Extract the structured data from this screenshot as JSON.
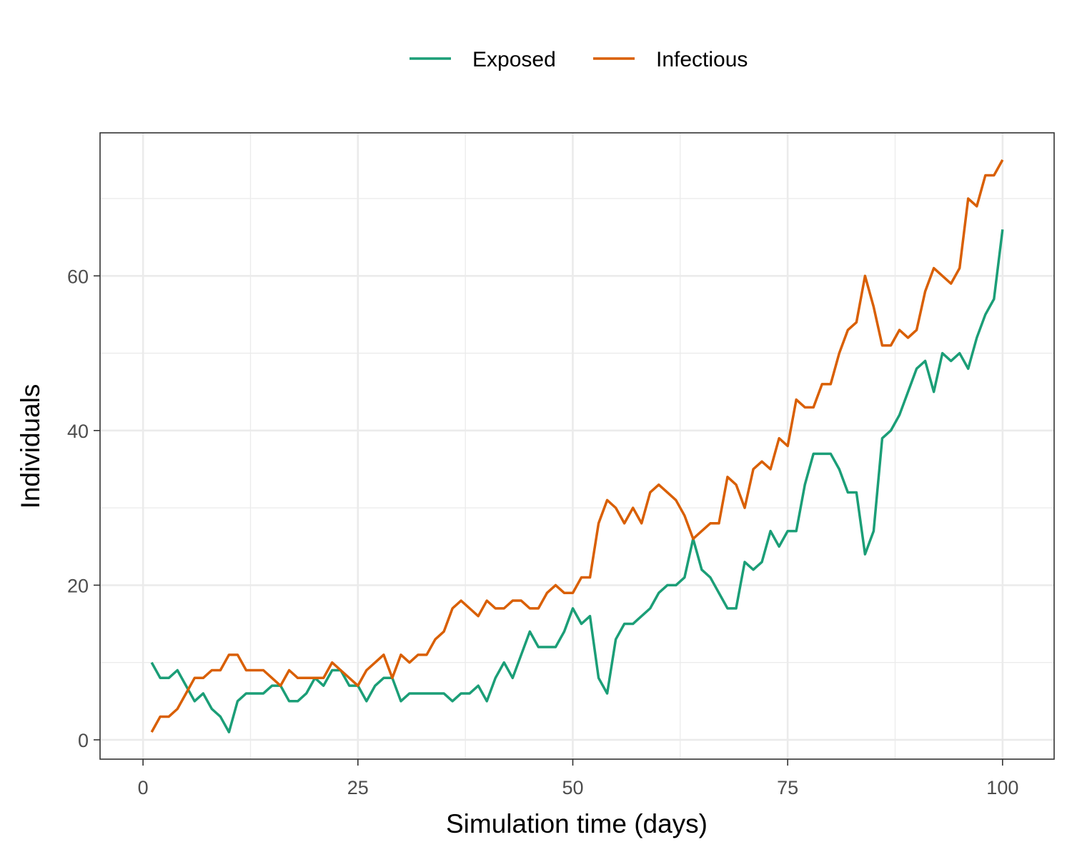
{
  "chart_data": {
    "type": "line",
    "xlabel": "Simulation time (days)",
    "ylabel": "Individuals",
    "xlim": [
      -5,
      106
    ],
    "ylim": [
      -2.5,
      78.5
    ],
    "x_ticks": [
      0,
      25,
      50,
      75,
      100
    ],
    "x_tick_labels": [
      "0",
      "25",
      "50",
      "75",
      "100"
    ],
    "y_ticks": [
      0,
      20,
      40,
      60
    ],
    "y_tick_labels": [
      "0",
      "20",
      "40",
      "60"
    ],
    "grid": true,
    "legend_position": "top",
    "x": [
      1,
      2,
      3,
      4,
      5,
      6,
      7,
      8,
      9,
      10,
      11,
      12,
      13,
      14,
      15,
      16,
      17,
      18,
      19,
      20,
      21,
      22,
      23,
      24,
      25,
      26,
      27,
      28,
      29,
      30,
      31,
      32,
      33,
      34,
      35,
      36,
      37,
      38,
      39,
      40,
      41,
      42,
      43,
      44,
      45,
      46,
      47,
      48,
      49,
      50,
      51,
      52,
      53,
      54,
      55,
      56,
      57,
      58,
      59,
      60,
      61,
      62,
      63,
      64,
      65,
      66,
      67,
      68,
      69,
      70,
      71,
      72,
      73,
      74,
      75,
      76,
      77,
      78,
      79,
      80,
      81,
      82,
      83,
      84,
      85,
      86,
      87,
      88,
      89,
      90,
      91,
      92,
      93,
      94,
      95,
      96,
      97,
      98,
      99,
      100
    ],
    "series": [
      {
        "name": "Exposed",
        "color": "#1b9e77",
        "values": [
          10,
          8,
          8,
          9,
          7,
          5,
          6,
          4,
          3,
          1,
          5,
          6,
          6,
          6,
          7,
          7,
          5,
          5,
          6,
          8,
          7,
          9,
          9,
          7,
          7,
          5,
          7,
          8,
          8,
          5,
          6,
          6,
          6,
          6,
          6,
          5,
          6,
          6,
          7,
          5,
          8,
          10,
          8,
          11,
          14,
          12,
          12,
          12,
          14,
          17,
          15,
          16,
          8,
          6,
          13,
          15,
          15,
          16,
          17,
          19,
          20,
          20,
          21,
          26,
          22,
          21,
          19,
          17,
          17,
          23,
          22,
          23,
          27,
          25,
          27,
          27,
          33,
          37,
          37,
          37,
          35,
          32,
          32,
          24,
          27,
          39,
          40,
          42,
          45,
          48,
          49,
          45,
          50,
          49,
          50,
          48,
          52,
          55,
          57,
          66
        ]
      },
      {
        "name": "Infectious",
        "color": "#d95f02",
        "values": [
          1,
          3,
          3,
          4,
          6,
          8,
          8,
          9,
          9,
          11,
          11,
          9,
          9,
          9,
          8,
          7,
          9,
          8,
          8,
          8,
          8,
          10,
          9,
          8,
          7,
          9,
          10,
          11,
          8,
          11,
          10,
          11,
          11,
          13,
          14,
          17,
          18,
          17,
          16,
          18,
          17,
          17,
          18,
          18,
          17,
          17,
          19,
          20,
          19,
          19,
          21,
          21,
          28,
          31,
          30,
          28,
          30,
          28,
          32,
          33,
          32,
          31,
          29,
          26,
          27,
          28,
          28,
          34,
          33,
          30,
          35,
          36,
          35,
          39,
          38,
          44,
          43,
          43,
          46,
          46,
          50,
          53,
          54,
          60,
          56,
          51,
          51,
          53,
          52,
          53,
          58,
          61,
          60,
          59,
          61,
          70,
          69,
          73,
          73,
          75
        ]
      }
    ]
  }
}
